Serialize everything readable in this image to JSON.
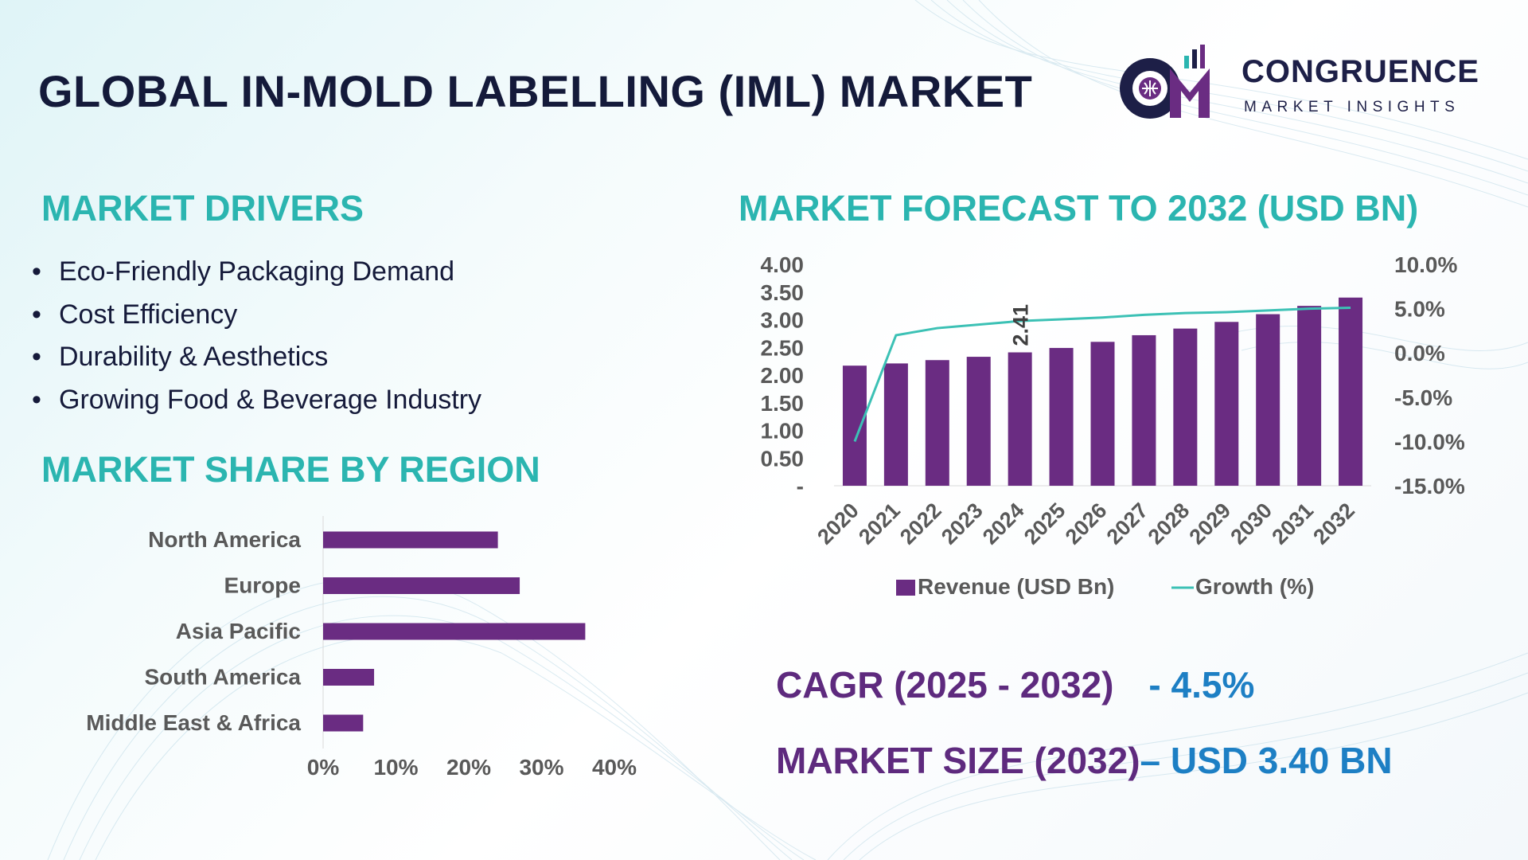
{
  "title": "GLOBAL IN-MOLD LABELLING (IML) MARKET",
  "logo": {
    "name": "CONGRUENCE",
    "tagline": "MARKET INSIGHTS",
    "colors": {
      "primary": "#5e2a7e",
      "dark": "#1d1f47",
      "accent": "#2bb5b0"
    }
  },
  "drivers": {
    "heading": "MARKET DRIVERS",
    "items": [
      "Eco-Friendly Packaging Demand",
      "Cost Efficiency",
      "Durability & Aesthetics",
      "Growing Food & Beverage Industry"
    ]
  },
  "region": {
    "heading": "MARKET SHARE BY REGION"
  },
  "forecast": {
    "heading": "MARKET FORECAST TO 2032 (USD BN)"
  },
  "kpis": {
    "cagr_label": "CAGR (2025 - 2032)",
    "cagr_value": "- 4.5%",
    "size_label": "MARKET SIZE (2032)",
    "size_value": "– USD 3.40 BN"
  },
  "colors": {
    "bar": "#6a2c82",
    "line": "#3cc1b5",
    "heading": "#2bb5b0",
    "kpi_label": "#5e2a7e",
    "kpi_value": "#1d7fc4",
    "title": "#141a3a"
  },
  "chart_data": [
    {
      "type": "bar",
      "orientation": "horizontal",
      "categories": [
        "North America",
        "Europe",
        "Asia Pacific",
        "South America",
        "Middle East & Africa"
      ],
      "values": [
        24,
        27,
        36,
        7,
        5.5
      ],
      "xlim": [
        0,
        40
      ],
      "xticks": [
        "0%",
        "10%",
        "20%",
        "30%",
        "40%"
      ],
      "grid": false
    },
    {
      "type": "bar",
      "categories": [
        "2020",
        "2021",
        "2022",
        "2023",
        "2024",
        "2025",
        "2026",
        "2027",
        "2028",
        "2029",
        "2030",
        "2031",
        "2032"
      ],
      "series": [
        {
          "name": "Revenue (USD Bn)",
          "type": "bar",
          "axis": "left",
          "values": [
            2.17,
            2.21,
            2.27,
            2.33,
            2.41,
            2.49,
            2.6,
            2.72,
            2.84,
            2.96,
            3.1,
            3.25,
            3.4
          ]
        },
        {
          "name": "Growth (%)",
          "type": "line",
          "axis": "right",
          "values": [
            -10.0,
            2.0,
            2.8,
            3.2,
            3.6,
            3.8,
            4.0,
            4.3,
            4.5,
            4.6,
            4.8,
            5.0,
            5.1
          ]
        }
      ],
      "data_labels": [
        {
          "category": "2024",
          "text": "2.41"
        }
      ],
      "ylim_left": [
        0,
        4
      ],
      "yticks_left": [
        "-",
        "0.50",
        "1.00",
        "1.50",
        "2.00",
        "2.50",
        "3.00",
        "3.50",
        "4.00"
      ],
      "ylim_right": [
        -15,
        10
      ],
      "yticks_right": [
        "-15.0%",
        "-10.0%",
        "-5.0%",
        "0.0%",
        "5.0%",
        "10.0%"
      ],
      "legend": "bottom",
      "grid": false
    }
  ]
}
